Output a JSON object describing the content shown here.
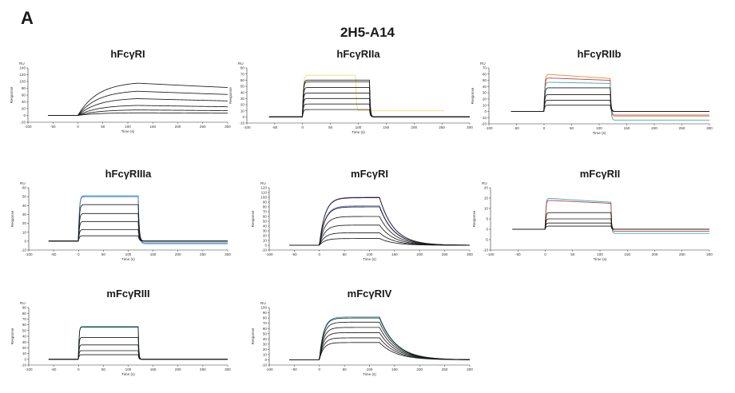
{
  "panel_letter": "A",
  "figure_title": "2H5-A14",
  "colors": {
    "trace": "#1a1a1a",
    "axis": "#333333",
    "accent_yellow": "#e8e070",
    "accent_cyan": "#3aa8b8",
    "accent_blue": "#4a6fd0",
    "accent_red": "#c04040",
    "accent_purple": "#8a4fb0",
    "accent_orange": "#d8903a"
  },
  "chart_data": [
    {
      "type": "line",
      "title": "hFcγRI",
      "unit_label": "RU",
      "xlabel": "Time (s)",
      "ylabel": "Response",
      "xlim": [
        -100,
        300
      ],
      "ylim": [
        -20,
        140
      ],
      "xticks": [
        -100,
        -50,
        0,
        50,
        100,
        150,
        200,
        250,
        300
      ],
      "yticks": [
        -20,
        0,
        20,
        40,
        60,
        80,
        100,
        120,
        140
      ],
      "injection": {
        "start": 0,
        "end": 120,
        "kinetics": "slow",
        "assoc_k": 0.025,
        "dissoc_k": 0.0008
      },
      "baseline_start": -60,
      "series": [
        {
          "plateau": 100
        },
        {
          "plateau": 75
        },
        {
          "plateau": 52
        },
        {
          "plateau": 31
        },
        {
          "plateau": 17
        },
        {
          "plateau": 8
        }
      ]
    },
    {
      "type": "line",
      "title": "hFcγRIIa",
      "unit_label": "RU",
      "xlabel": "Time (s)",
      "ylabel": "Response",
      "xlim": [
        -100,
        300
      ],
      "ylim": [
        -10,
        80
      ],
      "xticks": [
        -100,
        -50,
        0,
        50,
        100,
        150,
        200,
        250,
        300
      ],
      "yticks": [
        -10,
        0,
        10,
        20,
        30,
        40,
        50,
        60,
        70,
        80
      ],
      "injection": {
        "start": 0,
        "end": 120,
        "kinetics": "fast",
        "assoc_k": 0.8,
        "dissoc_k": 0.8
      },
      "baseline_start": -60,
      "series": [
        {
          "plateau": 68,
          "color": "#e8e070",
          "end": 95,
          "baseline_end": 10,
          "end_x": 255
        },
        {
          "plateau": 60
        },
        {
          "plateau": 57
        },
        {
          "plateau": 48
        },
        {
          "plateau": 39
        },
        {
          "plateau": 30
        },
        {
          "plateau": 21
        },
        {
          "plateau": 12
        }
      ]
    },
    {
      "type": "line",
      "title": "hFcγRIIb",
      "unit_label": "RU",
      "xlabel": "Time (s)",
      "ylabel": "Response",
      "xlim": [
        -100,
        300
      ],
      "ylim": [
        -20,
        70
      ],
      "xticks": [
        -100,
        -50,
        0,
        50,
        100,
        150,
        200,
        250,
        300
      ],
      "yticks": [
        -20,
        -10,
        0,
        10,
        20,
        30,
        40,
        50,
        60,
        70
      ],
      "injection": {
        "start": 0,
        "end": 120,
        "kinetics": "fast",
        "assoc_k": 0.8,
        "dissoc_k": 0.8
      },
      "baseline_start": -60,
      "series": [
        {
          "plateau": 60,
          "plateau_end": 53,
          "color": "#d8903a",
          "baseline_end": -8
        },
        {
          "plateau": 54,
          "plateau_end": 50,
          "color": "#c04040",
          "baseline_end": -6
        },
        {
          "plateau": 47,
          "plateau_end": 45,
          "color": "#3aa8b8",
          "baseline_end": -14
        },
        {
          "plateau": 38
        },
        {
          "plateau": 27
        },
        {
          "plateau": 18
        },
        {
          "plateau": 10
        }
      ]
    },
    {
      "type": "line",
      "title": "hFcγRIIIa",
      "unit_label": "RU",
      "xlabel": "Time (s)",
      "ylabel": "Response",
      "xlim": [
        -100,
        300
      ],
      "ylim": [
        -10,
        60
      ],
      "xticks": [
        -100,
        -50,
        0,
        50,
        100,
        150,
        200,
        250,
        300
      ],
      "yticks": [
        -10,
        0,
        10,
        20,
        30,
        40,
        50,
        60
      ],
      "injection": {
        "start": 0,
        "end": 120,
        "kinetics": "fast",
        "assoc_k": 0.6,
        "dissoc_k": 0.5
      },
      "baseline_start": -60,
      "series": [
        {
          "plateau": 51,
          "color": "#3aa8b8",
          "baseline_end": -3
        },
        {
          "plateau": 50,
          "color": "#4a6fd0",
          "baseline_end": -2
        },
        {
          "plateau": 41
        },
        {
          "plateau": 31
        },
        {
          "plateau": 22
        },
        {
          "plateau": 13
        },
        {
          "plateau": 6
        }
      ]
    },
    {
      "type": "line",
      "title": "mFcγRI",
      "unit_label": "RU",
      "xlabel": "Time (s)",
      "ylabel": "Response",
      "xlim": [
        -100,
        300
      ],
      "ylim": [
        -10,
        120
      ],
      "xticks": [
        -100,
        -50,
        0,
        50,
        100,
        150,
        200,
        250,
        300
      ],
      "yticks": [
        -10,
        0,
        10,
        20,
        30,
        40,
        50,
        60,
        70,
        80,
        90,
        100,
        110,
        120
      ],
      "injection": {
        "start": 0,
        "end": 120,
        "kinetics": "slow",
        "assoc_k": 0.09,
        "dissoc_k": 0.035
      },
      "baseline_start": -60,
      "series": [
        {
          "plateau": 100,
          "color": "#8a4fb0"
        },
        {
          "plateau": 99
        },
        {
          "plateau": 82,
          "color": "#4a6fd0"
        },
        {
          "plateau": 80
        },
        {
          "plateau": 60
        },
        {
          "plateau": 42
        },
        {
          "plateau": 26
        },
        {
          "plateau": 14
        }
      ]
    },
    {
      "type": "line",
      "title": "mFcγRII",
      "unit_label": "RU",
      "xlabel": "Time (s)",
      "ylabel": "Response",
      "xlim": [
        -100,
        300
      ],
      "ylim": [
        -10,
        20
      ],
      "xticks": [
        -100,
        -50,
        0,
        50,
        100,
        150,
        200,
        250,
        300
      ],
      "yticks": [
        -10,
        -5,
        0,
        5,
        10,
        15,
        20
      ],
      "injection": {
        "start": 0,
        "end": 120,
        "kinetics": "fast",
        "assoc_k": 0.9,
        "dissoc_k": 0.9
      },
      "baseline_start": -60,
      "series": [
        {
          "plateau": 15,
          "plateau_end": 13,
          "color": "#3aa8b8",
          "baseline_end": -2
        },
        {
          "plateau": 14,
          "plateau_end": 12.5,
          "color": "#c04040",
          "baseline_end": -1
        },
        {
          "plateau": 8
        },
        {
          "plateau": 5
        },
        {
          "plateau": 3
        },
        {
          "plateau": 1.5
        }
      ]
    },
    {
      "type": "line",
      "title": "mFcγRIII",
      "unit_label": "RU",
      "xlabel": "Time (s)",
      "ylabel": "Response",
      "xlim": [
        -100,
        300
      ],
      "ylim": [
        -10,
        90
      ],
      "xticks": [
        -100,
        -50,
        0,
        50,
        100,
        150,
        200,
        250,
        300
      ],
      "yticks": [
        -10,
        0,
        10,
        20,
        30,
        40,
        50,
        60,
        70,
        80,
        90
      ],
      "injection": {
        "start": 0,
        "end": 120,
        "kinetics": "fast",
        "assoc_k": 0.9,
        "dissoc_k": 0.9
      },
      "baseline_start": -60,
      "series": [
        {
          "plateau": 57,
          "color": "#3aa8b8"
        },
        {
          "plateau": 56
        },
        {
          "plateau": 38
        },
        {
          "plateau": 25
        },
        {
          "plateau": 15
        },
        {
          "plateau": 8
        }
      ]
    },
    {
      "type": "line",
      "title": "mFcγRIV",
      "unit_label": "RU",
      "xlabel": "Time (s)",
      "ylabel": "Response",
      "xlim": [
        -100,
        300
      ],
      "ylim": [
        -10,
        100
      ],
      "xticks": [
        -100,
        -50,
        0,
        50,
        100,
        150,
        200,
        250,
        300
      ],
      "yticks": [
        -10,
        0,
        10,
        20,
        30,
        40,
        50,
        60,
        70,
        80,
        90,
        100
      ],
      "injection": {
        "start": 0,
        "end": 120,
        "kinetics": "slow",
        "assoc_k": 0.12,
        "dissoc_k": 0.03
      },
      "baseline_start": -60,
      "series": [
        {
          "plateau": 82,
          "color": "#3aa8b8"
        },
        {
          "plateau": 80
        },
        {
          "plateau": 72
        },
        {
          "plateau": 62
        },
        {
          "plateau": 52
        },
        {
          "plateau": 42
        },
        {
          "plateau": 33
        }
      ]
    }
  ]
}
